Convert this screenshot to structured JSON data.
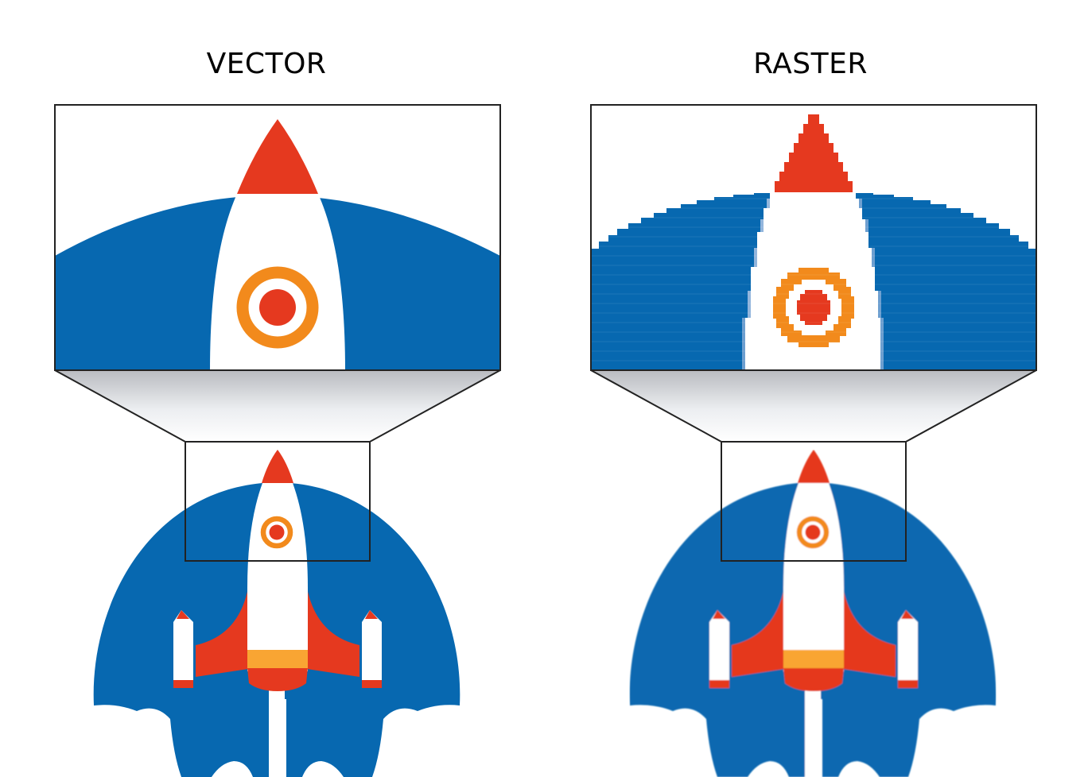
{
  "labels": {
    "vector": "VECTOR",
    "raster": "RASTER"
  },
  "colors": {
    "blue": "#0768b0",
    "red": "#e5391f",
    "orange": "#f28a1c",
    "yellow": "#f9a533",
    "white": "#ffffff",
    "frame": "#222222"
  },
  "icons": {
    "illustration": "rocket-icon"
  }
}
